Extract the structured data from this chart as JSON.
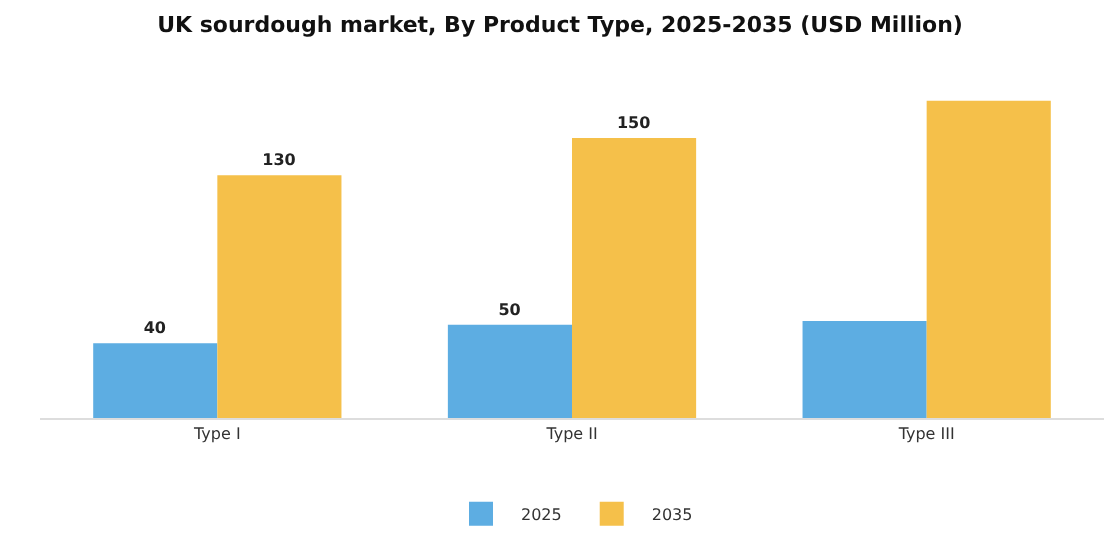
{
  "chart_data": {
    "type": "bar",
    "title": "UK sourdough market, By Product Type, 2025-2035 (USD Million)",
    "categories": [
      "Type I",
      "Type II",
      "Type III"
    ],
    "series": [
      {
        "name": "2025",
        "color": "#5dade2",
        "values": [
          40,
          50,
          52
        ],
        "value_labels": [
          "40",
          "50",
          null
        ]
      },
      {
        "name": "2035",
        "color": "#f5c04a",
        "values": [
          130,
          150,
          170
        ],
        "value_labels": [
          "130",
          "150",
          null
        ]
      }
    ],
    "tick_labels": "x",
    "grid": false,
    "legend": "bottom"
  }
}
